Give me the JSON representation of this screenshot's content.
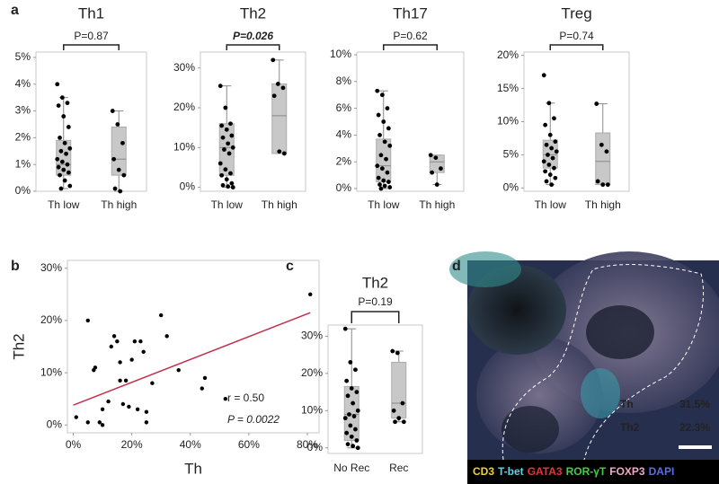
{
  "chart_data": [
    {
      "type": "box",
      "panel": "a",
      "title": "Th1",
      "annotation": "P=0.87",
      "categories": [
        "Th low",
        "Th high"
      ],
      "boxes": [
        {
          "min": 0.1,
          "q1": 0.6,
          "median": 1.0,
          "q3": 1.9,
          "max": 3.5,
          "points": [
            4.0,
            3.5,
            3.3,
            3.2,
            2.8,
            2.4,
            2.0,
            1.8,
            1.6,
            1.5,
            1.4,
            1.2,
            1.1,
            1.0,
            0.9,
            0.8,
            0.7,
            0.6,
            0.4,
            0.2,
            0.1
          ]
        },
        {
          "min": 0,
          "q1": 0.6,
          "median": 1.2,
          "q3": 2.4,
          "max": 3.0,
          "points": [
            3.0,
            2.5,
            1.8,
            1.2,
            0.8,
            0.6,
            0.1,
            0
          ]
        }
      ],
      "ylim": [
        0,
        5.2
      ],
      "yticks": [
        {
          "value": 0,
          "label": "0%"
        },
        {
          "value": 1,
          "label": "1%"
        },
        {
          "value": 2,
          "label": "2%"
        },
        {
          "value": 3,
          "label": "3%"
        },
        {
          "value": 4,
          "label": "4%"
        },
        {
          "value": 5,
          "label": "5%"
        }
      ]
    },
    {
      "type": "box",
      "title": "Th2",
      "annotation": "P=0.026",
      "annotation_color": "#d0202a",
      "categories": [
        "Th low",
        "Th high"
      ],
      "boxes": [
        {
          "min": 0,
          "q1": 3,
          "median": 10,
          "q3": 16,
          "max": 25.5,
          "points": [
            25.5,
            20,
            16,
            15.5,
            14.5,
            13,
            12.5,
            11,
            10,
            9.5,
            8.5,
            6,
            4.5,
            3.5,
            3,
            2,
            1,
            0.5,
            0.2,
            0
          ]
        },
        {
          "min": 8.5,
          "q1": 8.5,
          "median": 18,
          "q3": 26,
          "max": 32,
          "points": [
            32,
            26,
            25,
            23,
            9,
            8.5
          ]
        }
      ],
      "ylim": [
        -1,
        34
      ],
      "yticks": [
        {
          "value": 0,
          "label": "0%"
        },
        {
          "value": 10,
          "label": "10%"
        },
        {
          "value": 20,
          "label": "20%"
        },
        {
          "value": 30,
          "label": "30%"
        }
      ]
    },
    {
      "type": "box",
      "title": "Th17",
      "annotation": "P=0.62",
      "categories": [
        "Th low",
        "Th high"
      ],
      "boxes": [
        {
          "min": 0,
          "q1": 0.5,
          "median": 1.7,
          "q3": 3.7,
          "max": 7.3,
          "points": [
            7.3,
            7,
            6,
            5.5,
            5,
            4.5,
            4,
            3.5,
            3.2,
            2.5,
            2.2,
            1.7,
            1.5,
            1.2,
            0.8,
            0.6,
            0.5,
            0.3,
            0.2,
            0.1,
            0
          ]
        },
        {
          "min": 0.3,
          "q1": 1.2,
          "median": 2,
          "q3": 2.5,
          "max": 2.5,
          "points": [
            2.5,
            2.3,
            1.5,
            1.2,
            0.3
          ]
        }
      ],
      "ylim": [
        -0.2,
        10.2
      ],
      "yticks": [
        {
          "value": 0,
          "label": "0%"
        },
        {
          "value": 2,
          "label": "2%"
        },
        {
          "value": 4,
          "label": "4%"
        },
        {
          "value": 6,
          "label": "6%"
        },
        {
          "value": 8,
          "label": "8%"
        },
        {
          "value": 10,
          "label": "10%"
        }
      ]
    },
    {
      "type": "box",
      "title": "Treg",
      "annotation": "P=0.74",
      "categories": [
        "Th low",
        "Th high"
      ],
      "boxes": [
        {
          "min": 0.5,
          "q1": 3,
          "median": 5,
          "q3": 7.2,
          "max": 12.8,
          "points": [
            17,
            12.8,
            10.5,
            9.5,
            8,
            7,
            6.5,
            6,
            5.5,
            5,
            4.5,
            4,
            3.5,
            3,
            2.5,
            2,
            1.5,
            1,
            0.5
          ]
        },
        {
          "min": 0.5,
          "q1": 0.5,
          "median": 4,
          "q3": 8.3,
          "max": 12.7,
          "points": [
            12.7,
            6.5,
            5.5,
            1,
            0.5,
            0.5
          ]
        }
      ],
      "ylim": [
        -0.5,
        20.5
      ],
      "yticks": [
        {
          "value": 0,
          "label": "0%"
        },
        {
          "value": 5,
          "label": "5%"
        },
        {
          "value": 10,
          "label": "10%"
        },
        {
          "value": 15,
          "label": "15%"
        },
        {
          "value": 20,
          "label": "20%"
        }
      ]
    },
    {
      "type": "scatter",
      "panel": "b",
      "xlabel": "Th",
      "ylabel": "Th2",
      "color": "#000000",
      "x": [
        1,
        5,
        5,
        7,
        7.5,
        9,
        10,
        10,
        12,
        13,
        14,
        15,
        16,
        16,
        17,
        18,
        19,
        20,
        21,
        22,
        23,
        24,
        25,
        27,
        30,
        32,
        36,
        44,
        45,
        52,
        25,
        81
      ],
      "y": [
        1.5,
        0.5,
        20,
        10.5,
        11,
        0.5,
        3,
        0,
        4.5,
        15,
        17,
        16,
        12,
        8.5,
        4,
        8.5,
        3.5,
        12.5,
        16,
        3,
        16,
        14,
        2.5,
        8,
        21,
        17,
        10.5,
        7,
        9,
        5,
        0.5,
        25
      ],
      "trendline": {
        "x": [
          0,
          81
        ],
        "y": [
          3.8,
          21.5
        ],
        "color": "#c0304a"
      },
      "annotations": [
        {
          "text": "r = 0.50",
          "color": "#222222"
        },
        {
          "text": "P = 0.0022",
          "color": "#d0202a"
        }
      ],
      "xlim": [
        -2,
        84
      ],
      "xticks": [
        {
          "value": 0,
          "label": "0%"
        },
        {
          "value": 20,
          "label": "20%"
        },
        {
          "value": 40,
          "label": "40%"
        },
        {
          "value": 60,
          "label": "60%"
        },
        {
          "value": 80,
          "label": "80%"
        }
      ],
      "ylim": [
        -1.5,
        31.5
      ],
      "yticks": [
        {
          "value": 0,
          "label": "0%"
        },
        {
          "value": 10,
          "label": "10%"
        },
        {
          "value": 20,
          "label": "20%"
        },
        {
          "value": 30,
          "label": "30%"
        }
      ]
    },
    {
      "type": "box",
      "panel": "c",
      "title": "Th2",
      "annotation": "P=0.19",
      "categories": [
        "No Rec",
        "Rec"
      ],
      "boxes": [
        {
          "min": 0,
          "q1": 2,
          "median": 9,
          "q3": 16.5,
          "max": 32,
          "points": [
            32,
            23,
            21,
            18,
            16,
            15,
            14,
            12,
            10,
            9,
            8.5,
            8,
            6,
            5,
            4,
            3,
            2,
            1,
            0.5,
            0
          ]
        },
        {
          "min": 7,
          "q1": 8,
          "median": 12,
          "q3": 23,
          "max": 26,
          "points": [
            26,
            25.5,
            12,
            10,
            8,
            7,
            7
          ]
        }
      ],
      "ylim": [
        -1.5,
        33
      ],
      "yticks": [
        {
          "value": 0,
          "label": "0%"
        },
        {
          "value": 10,
          "label": "10%"
        },
        {
          "value": 20,
          "label": "20%"
        },
        {
          "value": 30,
          "label": "30%"
        }
      ]
    }
  ],
  "panel_d": {
    "panel": "d",
    "labels": [
      {
        "name": "Th",
        "value": "31.5%"
      },
      {
        "name": "Th2",
        "value": "22.3%"
      }
    ],
    "legend": [
      {
        "text": "CD3",
        "color": "#f2d13a"
      },
      {
        "text": "T-bet",
        "color": "#5fd3e8"
      },
      {
        "text": "GATA3",
        "color": "#e8343c"
      },
      {
        "text": "ROR-γT",
        "color": "#3fcf4a"
      },
      {
        "text": "FOXP3",
        "color": "#f0a8c8"
      },
      {
        "text": "DAPI",
        "color": "#5a6ee0"
      }
    ]
  }
}
